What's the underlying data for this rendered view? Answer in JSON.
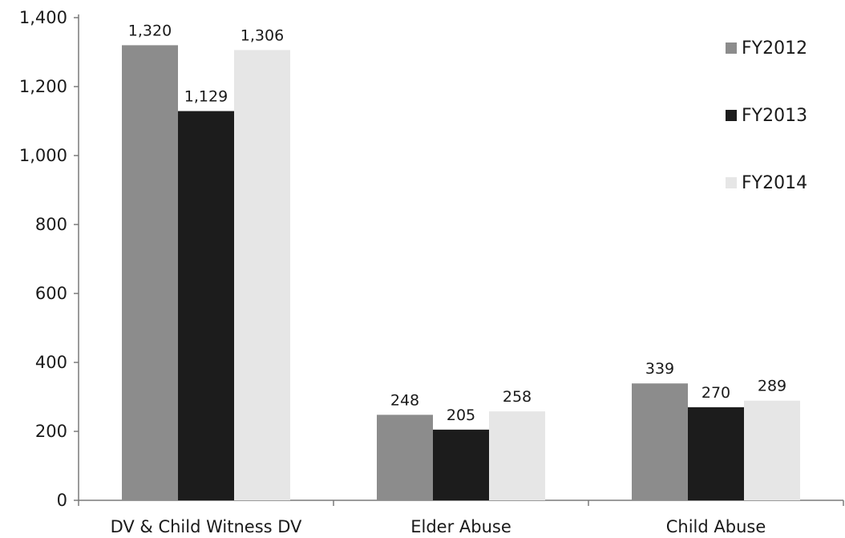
{
  "chart_data": {
    "type": "bar",
    "title": "",
    "xlabel": "",
    "ylabel": "",
    "categories": [
      "DV & Child Witness DV",
      "Elder Abuse",
      "Child Abuse"
    ],
    "series": [
      {
        "name": "FY2012",
        "color": "#8c8c8c",
        "values": [
          1320,
          248,
          339
        ],
        "labels": [
          "1,320",
          "248",
          "339"
        ]
      },
      {
        "name": "FY2013",
        "color": "#1c1c1c",
        "values": [
          1129,
          205,
          270
        ],
        "labels": [
          "1,129",
          "205",
          "270"
        ]
      },
      {
        "name": "FY2014",
        "color": "#e6e6e6",
        "values": [
          1306,
          258,
          289
        ],
        "labels": [
          "1,306",
          "258",
          "289"
        ]
      }
    ],
    "ylim": [
      0,
      1400
    ],
    "yticks": [
      0,
      200,
      400,
      600,
      800,
      1000,
      1200,
      1400
    ],
    "ytick_labels": [
      "0",
      "200",
      "400",
      "600",
      "800",
      "1,000",
      "1,200",
      "1,400"
    ],
    "grid": false,
    "legend_position": "top-right"
  }
}
